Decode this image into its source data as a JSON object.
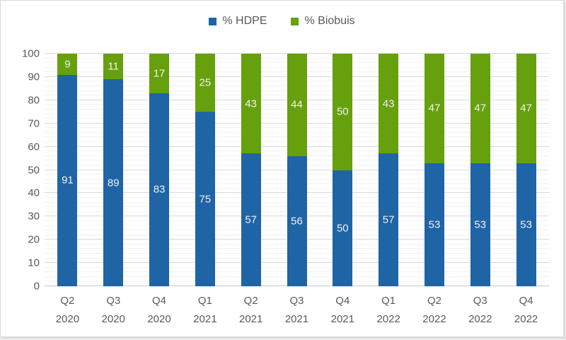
{
  "chart_data": {
    "type": "bar",
    "stacked": true,
    "categories": [
      "Q2 2020",
      "Q3 2020",
      "Q4 2020",
      "Q1 2021",
      "Q2 2021",
      "Q3 2021",
      "Q4 2021",
      "Q1 2022",
      "Q2 2022",
      "Q3 2022",
      "Q4 2022"
    ],
    "series": [
      {
        "name": "% HDPE",
        "color": "#1f64a5",
        "values": [
          91,
          89,
          83,
          75,
          57,
          56,
          50,
          57,
          53,
          53,
          53
        ]
      },
      {
        "name": "% Biobuis",
        "color": "#66a00d",
        "values": [
          9,
          11,
          17,
          25,
          43,
          44,
          50,
          43,
          47,
          47,
          47
        ]
      }
    ],
    "title": "",
    "xlabel": "",
    "ylabel": "",
    "ylim": [
      0,
      100
    ],
    "y_ticks": [
      0,
      10,
      20,
      30,
      40,
      50,
      60,
      70,
      80,
      90,
      100
    ],
    "minor_grid_step": 2,
    "grid": "major+minor",
    "legend_position": "top",
    "data_label_color": "#f2f2f2",
    "axis_text_color": "#595959",
    "major_grid_color": "#d9d9d9",
    "minor_grid_color": "#f2f2f2",
    "axis_line_color": "#c6c6c6",
    "frame_border_color": "#d9d9d9"
  }
}
